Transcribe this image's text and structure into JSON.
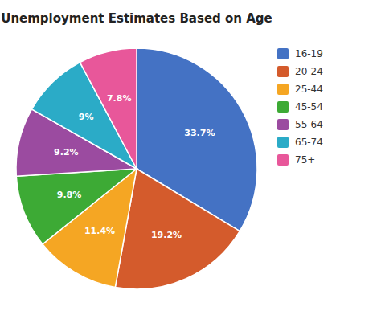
{
  "chart_data": {
    "type": "pie",
    "title": "Unemployment Estimates Based on Age",
    "categories": [
      "16-19",
      "20-24",
      "25-44",
      "45-54",
      "55-64",
      "65-74",
      "75+"
    ],
    "values": [
      33.7,
      19.2,
      11.4,
      9.8,
      9.2,
      9,
      7.8
    ],
    "value_labels": [
      "33.7%",
      "19.2%",
      "11.4%",
      "9.8%",
      "9.2%",
      "9%",
      "7.8%"
    ],
    "colors": [
      "#4472C4",
      "#D45B2C",
      "#F5A623",
      "#3DAA35",
      "#9B4BA0",
      "#2BABC7",
      "#E8579A"
    ],
    "data_labels": true,
    "legend": "upper right"
  }
}
